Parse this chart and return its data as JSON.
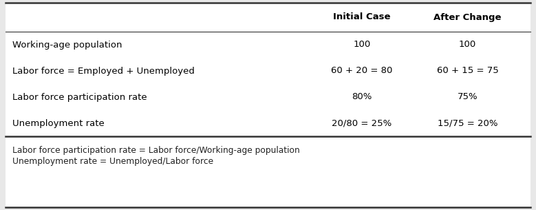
{
  "bg_color": "#e8e8e8",
  "white": "#ffffff",
  "header_row": [
    "",
    "Initial Case",
    "After Change"
  ],
  "rows": [
    [
      "Working-age population",
      "100",
      "100"
    ],
    [
      "Labor force = Employed + Unemployed",
      "60 + 20 = 80",
      "60 + 15 = 75"
    ],
    [
      "Labor force participation rate",
      "80%",
      "75%"
    ],
    [
      "Unemployment rate",
      "20/80 = 25%",
      "15/75 = 20%"
    ]
  ],
  "footnotes": [
    "Labor force participation rate = Labor force/Working-age population",
    "Unemployment rate = Unemployed/Labor force"
  ],
  "header_fontsize": 9.5,
  "row_fontsize": 9.5,
  "footnote_fontsize": 8.8,
  "line_color": "#333333",
  "thick_lw": 1.8,
  "thin_lw": 0.8
}
